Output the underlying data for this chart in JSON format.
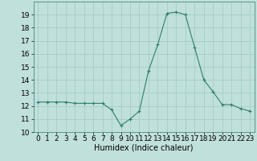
{
  "x": [
    0,
    1,
    2,
    3,
    4,
    5,
    6,
    7,
    8,
    9,
    10,
    11,
    12,
    13,
    14,
    15,
    16,
    17,
    18,
    19,
    20,
    21,
    22,
    23
  ],
  "y": [
    12.3,
    12.3,
    12.3,
    12.3,
    12.2,
    12.2,
    12.2,
    12.2,
    11.7,
    10.5,
    11.0,
    11.6,
    14.7,
    16.7,
    19.1,
    19.2,
    19.0,
    16.5,
    14.0,
    13.1,
    12.1,
    12.1,
    11.8,
    11.6
  ],
  "line_color": "#2e7d6e",
  "marker": "+",
  "marker_color": "#2e7d6e",
  "bg_color": "#c0e0dc",
  "grid_color": "#a8ccc8",
  "xlabel": "Humidex (Indice chaleur)",
  "xlabel_fontsize": 7,
  "tick_fontsize": 6.5,
  "ylim": [
    10,
    20
  ],
  "yticks": [
    10,
    11,
    12,
    13,
    14,
    15,
    16,
    17,
    18,
    19
  ],
  "xlim": [
    -0.5,
    23.5
  ],
  "xticks": [
    0,
    1,
    2,
    3,
    4,
    5,
    6,
    7,
    8,
    9,
    10,
    11,
    12,
    13,
    14,
    15,
    16,
    17,
    18,
    19,
    20,
    21,
    22,
    23
  ]
}
